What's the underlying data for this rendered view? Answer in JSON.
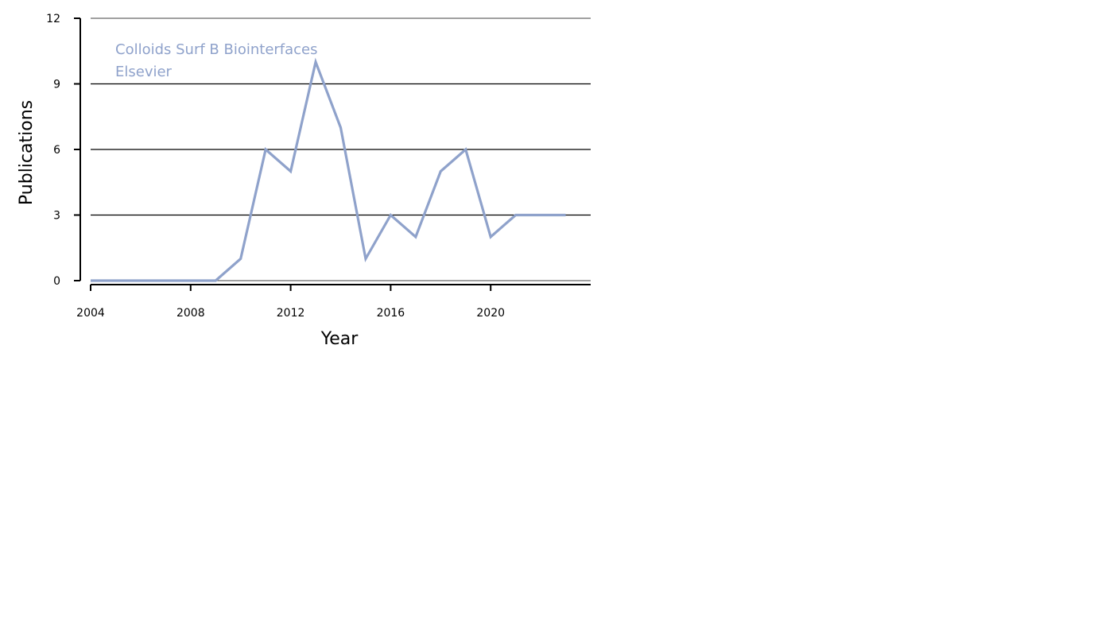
{
  "chart_data": {
    "type": "line",
    "xlabel": "Year",
    "ylabel": "Publications",
    "xlim": [
      2004,
      2024
    ],
    "ylim": [
      0,
      12
    ],
    "xticks": [
      2004,
      2008,
      2012,
      2016,
      2020
    ],
    "yticks": [
      0,
      3,
      6,
      9,
      12
    ],
    "grid": "horizontal",
    "annotation": [
      "Colloids Surf B Biointerfaces",
      "Elsevier"
    ],
    "series": [
      {
        "color": "#8fa2cb",
        "x": [
          2004,
          2005,
          2006,
          2007,
          2008,
          2009,
          2010,
          2011,
          2012,
          2013,
          2014,
          2015,
          2016,
          2017,
          2018,
          2019,
          2020,
          2021,
          2022,
          2023
        ],
        "values": [
          0,
          0,
          0,
          0,
          0,
          0,
          1,
          6,
          5,
          10,
          7,
          1,
          3,
          2,
          5,
          6,
          2,
          3,
          3,
          3
        ]
      }
    ]
  }
}
